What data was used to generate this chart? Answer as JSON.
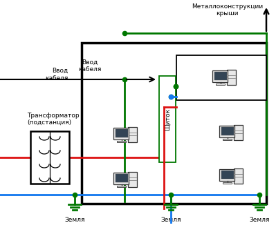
{
  "bg_color": "#ffffff",
  "title_roof": "Металлоконструкции\nкрыши",
  "label_transformer": "Трансформатор\n(подстанция)",
  "label_cable": "Ввод\nкабеля",
  "label_panel": "Щиток",
  "label_ground1": "Земля",
  "label_ground2": "Земля",
  "label_ground3": "Земля",
  "color_red": "#dd1111",
  "color_blue": "#1177ee",
  "color_green": "#007700",
  "color_black": "#000000",
  "lw": 2.0,
  "figsize": [
    3.99,
    3.36
  ],
  "dpi": 100
}
